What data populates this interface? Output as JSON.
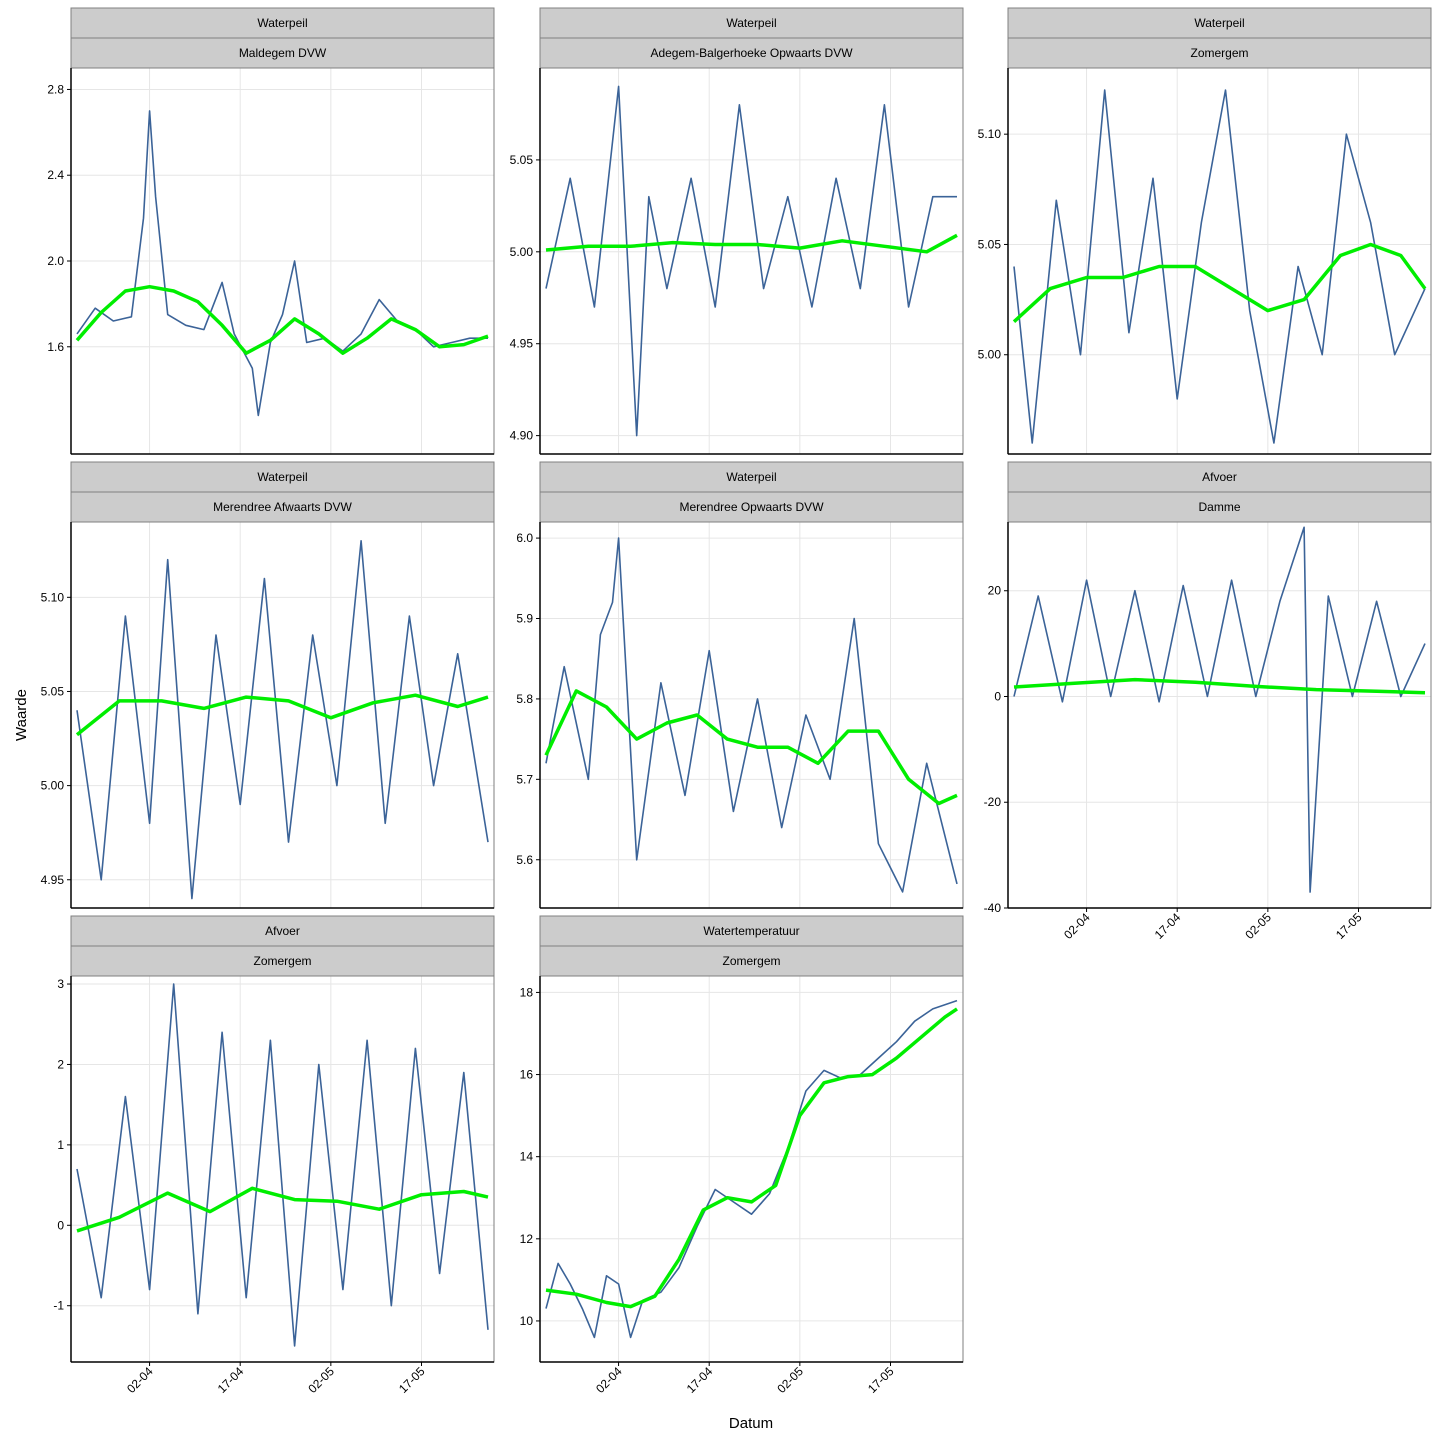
{
  "figure": {
    "xlabel": "Datum",
    "ylabel": "Waarde",
    "colors": {
      "series": "#3B6398",
      "smooth": "#00EE00",
      "strip": "#CCCCCC",
      "strip_border": "#808080",
      "grid": "#E6E6E6"
    }
  },
  "chart_data": [
    {
      "type": "line",
      "strip_top": "Waterpeil",
      "strip_bottom": "Maldegem DVW",
      "x_range": [
        "2015-03-20",
        "2015-05-29"
      ],
      "x_ticks": [
        "02-04",
        "17-04",
        "02-05",
        "17-05"
      ],
      "show_x_ticks": false,
      "ylim": [
        1.1,
        2.9
      ],
      "y_ticks": [
        "1.6",
        "2.0",
        "2.4",
        "2.8"
      ],
      "y_tick_values": [
        1.6,
        2.0,
        2.4,
        2.8
      ],
      "series": [
        {
          "name": "observations",
          "x": [
            "2015-03-21",
            "2015-03-24",
            "2015-03-27",
            "2015-03-30",
            "2015-04-01",
            "2015-04-02",
            "2015-04-03",
            "2015-04-05",
            "2015-04-08",
            "2015-04-11",
            "2015-04-14",
            "2015-04-16",
            "2015-04-19",
            "2015-04-20",
            "2015-04-22",
            "2015-04-24",
            "2015-04-26",
            "2015-04-28",
            "2015-05-01",
            "2015-05-04",
            "2015-05-07",
            "2015-05-10",
            "2015-05-13",
            "2015-05-16",
            "2015-05-19",
            "2015-05-22",
            "2015-05-25",
            "2015-05-28"
          ],
          "values": [
            1.66,
            1.78,
            1.72,
            1.74,
            2.2,
            2.7,
            2.3,
            1.75,
            1.7,
            1.68,
            1.9,
            1.66,
            1.5,
            1.28,
            1.62,
            1.75,
            2.0,
            1.62,
            1.64,
            1.58,
            1.66,
            1.82,
            1.72,
            1.68,
            1.6,
            1.62,
            1.64,
            1.64
          ]
        },
        {
          "name": "loess",
          "x": [
            "2015-03-21",
            "2015-03-25",
            "2015-03-29",
            "2015-04-02",
            "2015-04-06",
            "2015-04-10",
            "2015-04-14",
            "2015-04-18",
            "2015-04-22",
            "2015-04-26",
            "2015-04-30",
            "2015-05-04",
            "2015-05-08",
            "2015-05-12",
            "2015-05-16",
            "2015-05-20",
            "2015-05-24",
            "2015-05-28"
          ],
          "values": [
            1.63,
            1.76,
            1.86,
            1.88,
            1.86,
            1.81,
            1.7,
            1.57,
            1.63,
            1.73,
            1.66,
            1.57,
            1.64,
            1.73,
            1.68,
            1.6,
            1.61,
            1.65
          ]
        }
      ]
    },
    {
      "type": "line",
      "strip_top": "Waterpeil",
      "strip_bottom": "Adegem-Balgerhoeke Opwaarts DVW",
      "x_range": [
        "2015-03-20",
        "2015-05-29"
      ],
      "x_ticks": [
        "02-04",
        "17-04",
        "02-05",
        "17-05"
      ],
      "show_x_ticks": false,
      "ylim": [
        4.89,
        5.1
      ],
      "y_ticks": [
        "4.90",
        "4.95",
        "5.00",
        "5.05"
      ],
      "y_tick_values": [
        4.9,
        4.95,
        5.0,
        5.05
      ],
      "series": [
        {
          "name": "observations",
          "x": [
            "2015-03-21",
            "2015-03-25",
            "2015-03-29",
            "2015-04-02",
            "2015-04-05",
            "2015-04-07",
            "2015-04-10",
            "2015-04-14",
            "2015-04-18",
            "2015-04-22",
            "2015-04-26",
            "2015-04-30",
            "2015-05-04",
            "2015-05-08",
            "2015-05-12",
            "2015-05-16",
            "2015-05-20",
            "2015-05-24",
            "2015-05-28"
          ],
          "values": [
            4.98,
            5.04,
            4.97,
            5.09,
            4.9,
            5.03,
            4.98,
            5.04,
            4.97,
            5.08,
            4.98,
            5.03,
            4.97,
            5.04,
            4.98,
            5.08,
            4.97,
            5.03,
            5.03
          ]
        },
        {
          "name": "loess",
          "x": [
            "2015-03-21",
            "2015-03-28",
            "2015-04-04",
            "2015-04-11",
            "2015-04-18",
            "2015-04-25",
            "2015-05-02",
            "2015-05-09",
            "2015-05-16",
            "2015-05-23",
            "2015-05-28"
          ],
          "values": [
            5.001,
            5.003,
            5.003,
            5.005,
            5.004,
            5.004,
            5.002,
            5.006,
            5.003,
            5.0,
            5.009
          ]
        }
      ]
    },
    {
      "type": "line",
      "strip_top": "Waterpeil",
      "strip_bottom": "Zomergem",
      "x_range": [
        "2015-03-20",
        "2015-05-29"
      ],
      "x_ticks": [
        "02-04",
        "17-04",
        "02-05",
        "17-05"
      ],
      "show_x_ticks": false,
      "ylim": [
        4.955,
        5.13
      ],
      "y_ticks": [
        "5.00",
        "5.05",
        "5.10"
      ],
      "y_tick_values": [
        5.0,
        5.05,
        5.1
      ],
      "series": [
        {
          "name": "observations",
          "x": [
            "2015-03-21",
            "2015-03-24",
            "2015-03-28",
            "2015-04-01",
            "2015-04-05",
            "2015-04-09",
            "2015-04-13",
            "2015-04-17",
            "2015-04-21",
            "2015-04-25",
            "2015-04-29",
            "2015-05-03",
            "2015-05-07",
            "2015-05-11",
            "2015-05-15",
            "2015-05-19",
            "2015-05-23",
            "2015-05-28"
          ],
          "values": [
            5.04,
            4.96,
            5.07,
            5.0,
            5.12,
            5.01,
            5.08,
            4.98,
            5.06,
            5.12,
            5.02,
            4.96,
            5.04,
            5.0,
            5.1,
            5.06,
            5.0,
            5.03
          ]
        },
        {
          "name": "loess",
          "x": [
            "2015-03-21",
            "2015-03-27",
            "2015-04-02",
            "2015-04-08",
            "2015-04-14",
            "2015-04-20",
            "2015-04-26",
            "2015-05-02",
            "2015-05-08",
            "2015-05-14",
            "2015-05-19",
            "2015-05-24",
            "2015-05-28"
          ],
          "values": [
            5.015,
            5.03,
            5.035,
            5.035,
            5.04,
            5.04,
            5.03,
            5.02,
            5.025,
            5.045,
            5.05,
            5.045,
            5.03
          ]
        }
      ]
    },
    {
      "type": "line",
      "strip_top": "Waterpeil",
      "strip_bottom": "Merendree Afwaarts DVW",
      "x_range": [
        "2015-03-20",
        "2015-05-29"
      ],
      "x_ticks": [
        "02-04",
        "17-04",
        "02-05",
        "17-05"
      ],
      "show_x_ticks": false,
      "ylim": [
        4.935,
        5.14
      ],
      "y_ticks": [
        "4.95",
        "5.00",
        "5.05",
        "5.10"
      ],
      "y_tick_values": [
        4.95,
        5.0,
        5.05,
        5.1
      ],
      "series": [
        {
          "name": "observations",
          "x": [
            "2015-03-21",
            "2015-03-25",
            "2015-03-29",
            "2015-04-02",
            "2015-04-05",
            "2015-04-09",
            "2015-04-13",
            "2015-04-17",
            "2015-04-21",
            "2015-04-25",
            "2015-04-29",
            "2015-05-03",
            "2015-05-07",
            "2015-05-11",
            "2015-05-15",
            "2015-05-19",
            "2015-05-23",
            "2015-05-28"
          ],
          "values": [
            5.04,
            4.95,
            5.09,
            4.98,
            5.12,
            4.94,
            5.08,
            4.99,
            5.11,
            4.97,
            5.08,
            5.0,
            5.13,
            4.98,
            5.09,
            5.0,
            5.07,
            4.97
          ]
        },
        {
          "name": "loess",
          "x": [
            "2015-03-21",
            "2015-03-28",
            "2015-04-04",
            "2015-04-11",
            "2015-04-18",
            "2015-04-25",
            "2015-05-02",
            "2015-05-09",
            "2015-05-16",
            "2015-05-23",
            "2015-05-28"
          ],
          "values": [
            5.027,
            5.045,
            5.045,
            5.041,
            5.047,
            5.045,
            5.036,
            5.044,
            5.048,
            5.042,
            5.047
          ]
        }
      ]
    },
    {
      "type": "line",
      "strip_top": "Waterpeil",
      "strip_bottom": "Merendree Opwaarts DVW",
      "x_range": [
        "2015-03-20",
        "2015-05-29"
      ],
      "x_ticks": [
        "02-04",
        "17-04",
        "02-05",
        "17-05"
      ],
      "show_x_ticks": false,
      "ylim": [
        5.54,
        6.02
      ],
      "y_ticks": [
        "5.6",
        "5.7",
        "5.8",
        "5.9",
        "6.0"
      ],
      "y_tick_values": [
        5.6,
        5.7,
        5.8,
        5.9,
        6.0
      ],
      "series": [
        {
          "name": "observations",
          "x": [
            "2015-03-21",
            "2015-03-24",
            "2015-03-28",
            "2015-03-30",
            "2015-04-01",
            "2015-04-02",
            "2015-04-05",
            "2015-04-09",
            "2015-04-13",
            "2015-04-17",
            "2015-04-21",
            "2015-04-25",
            "2015-04-29",
            "2015-05-03",
            "2015-05-07",
            "2015-05-11",
            "2015-05-15",
            "2015-05-19",
            "2015-05-23",
            "2015-05-28"
          ],
          "values": [
            5.72,
            5.84,
            5.7,
            5.88,
            5.92,
            6.0,
            5.6,
            5.82,
            5.68,
            5.86,
            5.66,
            5.8,
            5.64,
            5.78,
            5.7,
            5.9,
            5.62,
            5.56,
            5.72,
            5.57
          ]
        },
        {
          "name": "loess",
          "x": [
            "2015-03-21",
            "2015-03-26",
            "2015-03-31",
            "2015-04-05",
            "2015-04-10",
            "2015-04-15",
            "2015-04-20",
            "2015-04-25",
            "2015-04-30",
            "2015-05-05",
            "2015-05-10",
            "2015-05-15",
            "2015-05-20",
            "2015-05-25",
            "2015-05-28"
          ],
          "values": [
            5.73,
            5.81,
            5.79,
            5.75,
            5.77,
            5.78,
            5.75,
            5.74,
            5.74,
            5.72,
            5.76,
            5.76,
            5.7,
            5.67,
            5.68
          ]
        }
      ]
    },
    {
      "type": "line",
      "strip_top": "Afvoer",
      "strip_bottom": "Damme",
      "x_range": [
        "2015-03-20",
        "2015-05-29"
      ],
      "x_ticks": [
        "02-04",
        "17-04",
        "02-05",
        "17-05"
      ],
      "show_x_ticks": true,
      "ylim": [
        -40,
        33
      ],
      "y_ticks": [
        "-40",
        "-20",
        "0",
        "20"
      ],
      "y_tick_values": [
        -40,
        -20,
        0,
        20
      ],
      "series": [
        {
          "name": "observations",
          "x": [
            "2015-03-21",
            "2015-03-25",
            "2015-03-29",
            "2015-04-02",
            "2015-04-06",
            "2015-04-10",
            "2015-04-14",
            "2015-04-18",
            "2015-04-22",
            "2015-04-26",
            "2015-04-30",
            "2015-05-04",
            "2015-05-08",
            "2015-05-09",
            "2015-05-12",
            "2015-05-16",
            "2015-05-20",
            "2015-05-24",
            "2015-05-28"
          ],
          "values": [
            0,
            19,
            -1,
            22,
            0,
            20,
            -1,
            21,
            0,
            22,
            0,
            18,
            32,
            -37,
            19,
            0,
            18,
            0,
            10
          ]
        },
        {
          "name": "loess",
          "x": [
            "2015-03-21",
            "2015-03-31",
            "2015-04-10",
            "2015-04-20",
            "2015-04-30",
            "2015-05-10",
            "2015-05-20",
            "2015-05-28"
          ],
          "values": [
            1.8,
            2.5,
            3.2,
            2.7,
            1.9,
            1.3,
            1.0,
            0.7
          ]
        }
      ]
    },
    {
      "type": "line",
      "strip_top": "Afvoer",
      "strip_bottom": "Zomergem",
      "x_range": [
        "2015-03-20",
        "2015-05-29"
      ],
      "x_ticks": [
        "02-04",
        "17-04",
        "02-05",
        "17-05"
      ],
      "show_x_ticks": true,
      "ylim": [
        -1.7,
        3.1
      ],
      "y_ticks": [
        "-1",
        "0",
        "1",
        "2",
        "3"
      ],
      "y_tick_values": [
        -1,
        0,
        1,
        2,
        3
      ],
      "series": [
        {
          "name": "observations",
          "x": [
            "2015-03-21",
            "2015-03-25",
            "2015-03-29",
            "2015-04-02",
            "2015-04-06",
            "2015-04-10",
            "2015-04-14",
            "2015-04-18",
            "2015-04-22",
            "2015-04-26",
            "2015-04-30",
            "2015-05-04",
            "2015-05-08",
            "2015-05-12",
            "2015-05-16",
            "2015-05-20",
            "2015-05-24",
            "2015-05-28"
          ],
          "values": [
            0.7,
            -0.9,
            1.6,
            -0.8,
            3.0,
            -1.1,
            2.4,
            -0.9,
            2.3,
            -1.5,
            2.0,
            -0.8,
            2.3,
            -1.0,
            2.2,
            -0.6,
            1.9,
            -1.3
          ]
        },
        {
          "name": "loess",
          "x": [
            "2015-03-21",
            "2015-03-28",
            "2015-04-05",
            "2015-04-12",
            "2015-04-19",
            "2015-04-26",
            "2015-05-03",
            "2015-05-10",
            "2015-05-17",
            "2015-05-24",
            "2015-05-28"
          ],
          "values": [
            -0.07,
            0.1,
            0.4,
            0.17,
            0.46,
            0.32,
            0.3,
            0.2,
            0.38,
            0.42,
            0.35
          ]
        }
      ]
    },
    {
      "type": "line",
      "strip_top": "Watertemperatuur",
      "strip_bottom": "Zomergem",
      "x_range": [
        "2015-03-20",
        "2015-05-29"
      ],
      "x_ticks": [
        "02-04",
        "17-04",
        "02-05",
        "17-05"
      ],
      "show_x_ticks": true,
      "ylim": [
        9.0,
        18.4
      ],
      "y_ticks": [
        "10",
        "12",
        "14",
        "16",
        "18"
      ],
      "y_tick_values": [
        10,
        12,
        14,
        16,
        18
      ],
      "series": [
        {
          "name": "observations",
          "x": [
            "2015-03-21",
            "2015-03-23",
            "2015-03-25",
            "2015-03-27",
            "2015-03-29",
            "2015-03-31",
            "2015-04-02",
            "2015-04-04",
            "2015-04-06",
            "2015-04-09",
            "2015-04-12",
            "2015-04-15",
            "2015-04-18",
            "2015-04-21",
            "2015-04-24",
            "2015-04-27",
            "2015-04-30",
            "2015-05-03",
            "2015-05-06",
            "2015-05-09",
            "2015-05-12",
            "2015-05-15",
            "2015-05-18",
            "2015-05-21",
            "2015-05-24",
            "2015-05-28"
          ],
          "values": [
            10.3,
            11.4,
            10.9,
            10.3,
            9.6,
            11.1,
            10.9,
            9.6,
            10.5,
            10.7,
            11.3,
            12.3,
            13.2,
            12.9,
            12.6,
            13.1,
            14.2,
            15.6,
            16.1,
            15.9,
            16.0,
            16.4,
            16.8,
            17.3,
            17.6,
            17.8
          ]
        },
        {
          "name": "loess",
          "x": [
            "2015-03-21",
            "2015-03-26",
            "2015-03-31",
            "2015-04-04",
            "2015-04-08",
            "2015-04-12",
            "2015-04-16",
            "2015-04-20",
            "2015-04-24",
            "2015-04-28",
            "2015-05-02",
            "2015-05-06",
            "2015-05-10",
            "2015-05-14",
            "2015-05-18",
            "2015-05-22",
            "2015-05-26",
            "2015-05-28"
          ],
          "values": [
            10.75,
            10.65,
            10.45,
            10.35,
            10.6,
            11.5,
            12.7,
            13.0,
            12.9,
            13.3,
            15.0,
            15.8,
            15.95,
            16.0,
            16.4,
            16.9,
            17.4,
            17.6
          ]
        }
      ]
    }
  ]
}
